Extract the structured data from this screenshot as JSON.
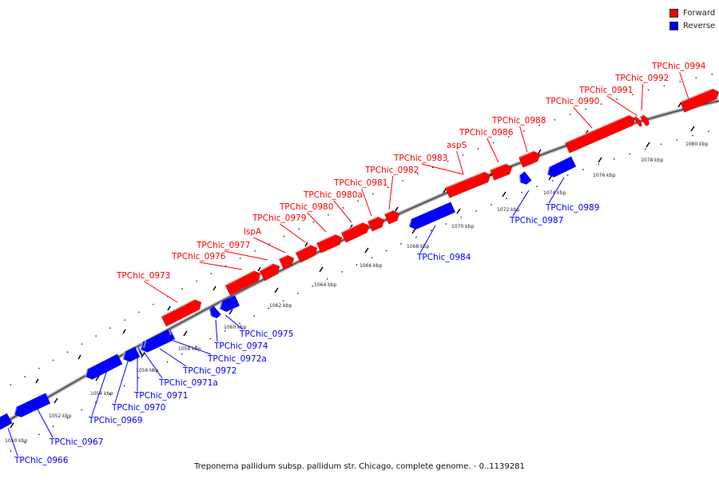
{
  "legend": {
    "forward_label": "Forward",
    "forward_color": "#ff0000",
    "reverse_label": "Reverse",
    "reverse_color": "#0000ff"
  },
  "caption": "Treponema pallidum subsp. pallidum str. Chicago, complete genome. - 0..1139281",
  "ticks": [
    "1050 kbp",
    "1052 kbp",
    "1054 kbp",
    "1056 kbp",
    "1058 kbp",
    "1060 kbp",
    "1062 kbp",
    "1064 kbp",
    "1066 kbp",
    "1068 kbp",
    "1070 kbp",
    "1072 kbp",
    "1074 kbp",
    "1076 kbp",
    "1078 kbp",
    "1080 kbp"
  ],
  "genes": [
    {
      "name": "TPChic_0966",
      "strand": "reverse"
    },
    {
      "name": "TPChic_0967",
      "strand": "reverse"
    },
    {
      "name": "TPChic_0969",
      "strand": "reverse"
    },
    {
      "name": "TPChic_0970",
      "strand": "reverse"
    },
    {
      "name": "TPChic_0971",
      "strand": "reverse"
    },
    {
      "name": "TPChic_0971a",
      "strand": "reverse"
    },
    {
      "name": "TPChic_0972",
      "strand": "reverse"
    },
    {
      "name": "TPChic_0972a",
      "strand": "reverse"
    },
    {
      "name": "TPChic_0973",
      "strand": "forward"
    },
    {
      "name": "TPChic_0974",
      "strand": "reverse"
    },
    {
      "name": "TPChic_0975",
      "strand": "reverse"
    },
    {
      "name": "TPChic_0976",
      "strand": "forward"
    },
    {
      "name": "TPChic_0977",
      "strand": "forward"
    },
    {
      "name": "lspA",
      "strand": "forward"
    },
    {
      "name": "TPChic_0979",
      "strand": "forward"
    },
    {
      "name": "TPChic_0980",
      "strand": "forward"
    },
    {
      "name": "TPChic_0980a",
      "strand": "forward"
    },
    {
      "name": "TPChic_0981",
      "strand": "forward"
    },
    {
      "name": "TPChic_0982",
      "strand": "forward"
    },
    {
      "name": "TPChic_0983",
      "strand": "forward"
    },
    {
      "name": "TPChic_0984",
      "strand": "reverse"
    },
    {
      "name": "aspS",
      "strand": "forward"
    },
    {
      "name": "TPChic_0986",
      "strand": "forward"
    },
    {
      "name": "TPChic_0987",
      "strand": "reverse"
    },
    {
      "name": "TPChic_0988",
      "strand": "forward"
    },
    {
      "name": "TPChic_0989",
      "strand": "reverse"
    },
    {
      "name": "TPChic_0990",
      "strand": "forward"
    },
    {
      "name": "TPChic_0991",
      "strand": "forward"
    },
    {
      "name": "TPChic_0992",
      "strand": "forward"
    },
    {
      "name": "TPChic_0994",
      "strand": "forward"
    }
  ]
}
